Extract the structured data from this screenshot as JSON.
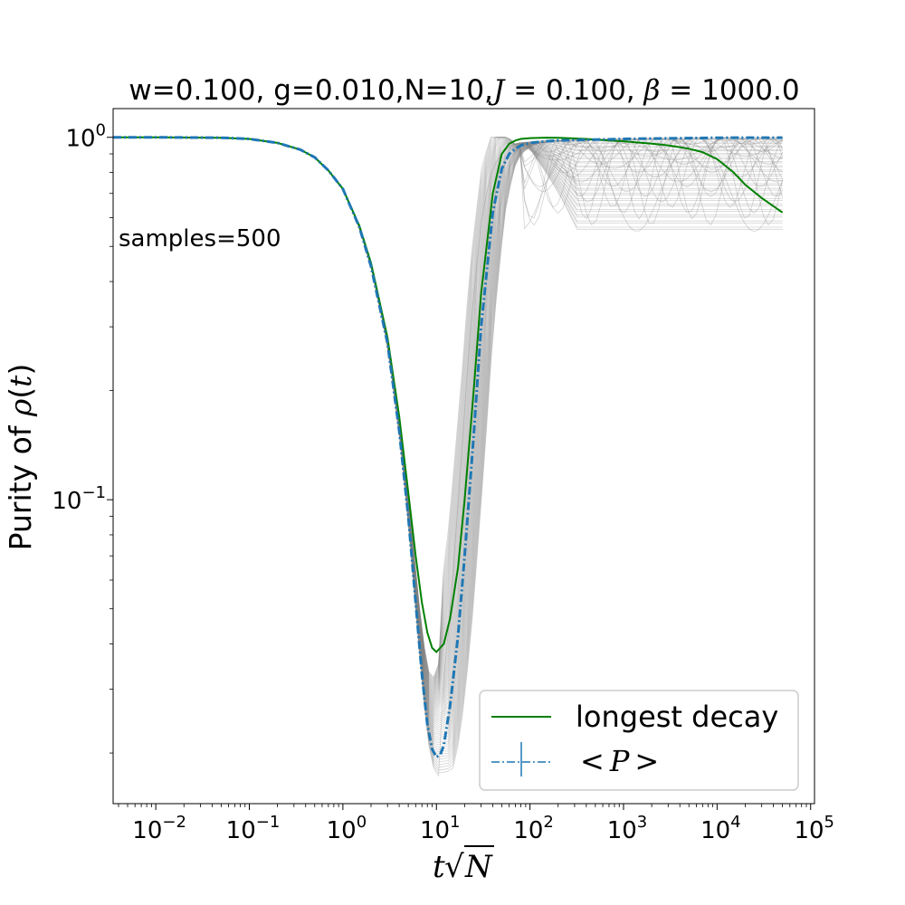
{
  "chart_data": {
    "type": "line",
    "title_prefix": "w=0.100, g=0.010,N=10,",
    "title_J_symbol": "J",
    "title_J_value": " = 0.100, ",
    "title_beta_symbol": "β",
    "title_beta_value": " = 1000.0",
    "annotation": "samples=500",
    "xlabel_t": "t",
    "xlabel_root": "√",
    "xlabel_N": "N",
    "ylabel_text": "Purity of ",
    "ylabel_rho": "ρ",
    "ylabel_arg_open": "(",
    "ylabel_arg_t": "t",
    "ylabel_arg_close": ")",
    "x_scale": "log",
    "y_scale": "log",
    "xlim": [
      0.0035,
      110000
    ],
    "ylim": [
      0.0145,
      1.2
    ],
    "xticks": [
      {
        "value": 0.01,
        "base": "10",
        "exp": "−2"
      },
      {
        "value": 0.1,
        "base": "10",
        "exp": "−1"
      },
      {
        "value": 1,
        "base": "10",
        "exp": "0"
      },
      {
        "value": 10,
        "base": "10",
        "exp": "1"
      },
      {
        "value": 100,
        "base": "10",
        "exp": "2"
      },
      {
        "value": 1000,
        "base": "10",
        "exp": "3"
      },
      {
        "value": 10000,
        "base": "10",
        "exp": "4"
      },
      {
        "value": 100000,
        "base": "10",
        "exp": "5"
      }
    ],
    "yticks": [
      {
        "value": 1,
        "base": "10",
        "exp": "0"
      },
      {
        "value": 0.1,
        "base": "10",
        "exp": "−1"
      }
    ],
    "grid": false,
    "legend_position": "lower-right",
    "legend": [
      {
        "label": "longest decay",
        "color": "#008000",
        "style": "solid"
      },
      {
        "label_open": "<",
        "label_P": "P",
        "label_close": ">",
        "color": "#1f77b4",
        "style": "dashdot-errorbar"
      }
    ],
    "colors": {
      "samples": "#808080",
      "longest_decay": "#008000",
      "mean": "#1f77b4"
    },
    "series": [
      {
        "name": "longest decay",
        "color": "#008000",
        "x": [
          0.0035,
          0.01,
          0.05,
          0.1,
          0.2,
          0.35,
          0.5,
          0.7,
          1.0,
          1.5,
          2,
          3,
          4,
          5,
          6,
          7,
          8,
          9,
          10,
          12,
          14,
          17,
          20,
          25,
          30,
          40,
          50,
          60,
          70,
          80,
          100,
          150,
          200,
          400,
          700,
          1000,
          2000,
          3000,
          5000,
          7000,
          10000,
          15000,
          20000,
          30000,
          50000
        ],
        "y": [
          1.0,
          1.0,
          0.997,
          0.99,
          0.965,
          0.925,
          0.88,
          0.81,
          0.72,
          0.57,
          0.45,
          0.28,
          0.17,
          0.105,
          0.07,
          0.052,
          0.043,
          0.039,
          0.038,
          0.04,
          0.047,
          0.065,
          0.1,
          0.2,
          0.37,
          0.7,
          0.9,
          0.96,
          0.98,
          0.99,
          0.995,
          0.998,
          0.997,
          0.99,
          0.98,
          0.975,
          0.96,
          0.95,
          0.93,
          0.91,
          0.87,
          0.8,
          0.74,
          0.68,
          0.62
        ]
      },
      {
        "name": "<P>",
        "color": "#1f77b4",
        "x": [
          0.0035,
          0.01,
          0.05,
          0.1,
          0.2,
          0.35,
          0.5,
          0.7,
          1.0,
          1.5,
          2,
          3,
          4,
          5,
          6,
          7,
          8,
          9,
          10,
          11,
          12,
          14,
          17,
          20,
          25,
          30,
          40,
          50,
          60,
          70,
          80,
          100,
          150,
          200,
          500,
          1000,
          5000,
          10000,
          50000
        ],
        "y": [
          1.0,
          1.0,
          0.997,
          0.99,
          0.965,
          0.925,
          0.88,
          0.81,
          0.72,
          0.565,
          0.44,
          0.27,
          0.155,
          0.09,
          0.052,
          0.033,
          0.024,
          0.0205,
          0.0195,
          0.0198,
          0.021,
          0.027,
          0.042,
          0.07,
          0.15,
          0.3,
          0.62,
          0.82,
          0.9,
          0.93,
          0.95,
          0.965,
          0.975,
          0.98,
          0.985,
          0.99,
          0.995,
          0.997,
          0.998
        ]
      }
    ]
  }
}
